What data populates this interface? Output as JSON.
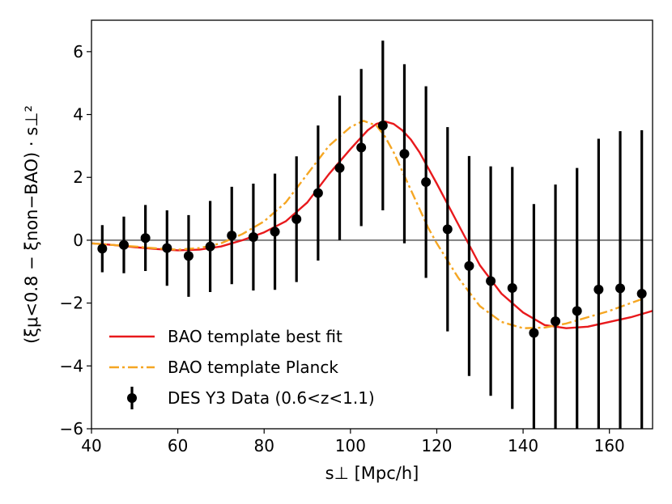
{
  "chart_data": {
    "type": "scatter",
    "title": "",
    "xlabel": "s⊥  [Mpc/h]",
    "ylabel": "(ξμ<0.8 − ξnon−BAO) · s⊥²",
    "xlim": [
      40,
      170
    ],
    "ylim": [
      -6,
      7
    ],
    "xticks": [
      40,
      60,
      80,
      100,
      120,
      140,
      160
    ],
    "yticks": [
      -6,
      -4,
      -2,
      0,
      2,
      4,
      6
    ],
    "xtick_labels": [
      "40",
      "60",
      "80",
      "100",
      "120",
      "140",
      "160"
    ],
    "ytick_labels": [
      "−6",
      "−4",
      "−2",
      "0",
      "2",
      "4",
      "6"
    ],
    "zero_line": 0,
    "legend_position": "lower-left",
    "series": [
      {
        "name": "BAO template best fit",
        "kind": "line",
        "style": "solid",
        "color": "#e8191c",
        "x": [
          40,
          45,
          50,
          55,
          60,
          65,
          70,
          75,
          80,
          85,
          90,
          95,
          100,
          102,
          104,
          106,
          108,
          110,
          112,
          114,
          116,
          118,
          120,
          125,
          130,
          135,
          140,
          145,
          150,
          155,
          160,
          165,
          170
        ],
        "y": [
          -0.1,
          -0.15,
          -0.22,
          -0.28,
          -0.32,
          -0.3,
          -0.2,
          0.0,
          0.25,
          0.6,
          1.2,
          2.1,
          2.9,
          3.2,
          3.5,
          3.7,
          3.78,
          3.7,
          3.5,
          3.2,
          2.8,
          2.3,
          1.8,
          0.5,
          -0.8,
          -1.7,
          -2.3,
          -2.7,
          -2.8,
          -2.75,
          -2.6,
          -2.45,
          -2.25
        ]
      },
      {
        "name": "BAO template Planck",
        "kind": "line",
        "style": "dash-dot",
        "color": "#f5a623",
        "x": [
          40,
          45,
          50,
          55,
          60,
          65,
          70,
          75,
          80,
          85,
          90,
          95,
          100,
          103,
          106,
          108,
          110,
          112,
          114,
          116,
          118,
          120,
          125,
          130,
          135,
          140,
          145,
          150,
          155,
          160,
          165,
          168
        ],
        "y": [
          -0.1,
          -0.15,
          -0.2,
          -0.26,
          -0.3,
          -0.25,
          -0.1,
          0.2,
          0.6,
          1.2,
          2.1,
          3.0,
          3.6,
          3.8,
          3.65,
          3.3,
          2.8,
          2.2,
          1.6,
          1.0,
          0.4,
          -0.1,
          -1.2,
          -2.1,
          -2.6,
          -2.8,
          -2.78,
          -2.65,
          -2.45,
          -2.25,
          -2.0,
          -1.85
        ]
      },
      {
        "name": "DES Y3 Data (0.6<z<1.1)",
        "kind": "errorbar",
        "color": "#000000",
        "x": [
          42.5,
          47.5,
          52.5,
          57.5,
          62.5,
          67.5,
          72.5,
          77.5,
          82.5,
          87.5,
          92.5,
          97.5,
          102.5,
          107.5,
          112.5,
          117.5,
          122.5,
          127.5,
          132.5,
          137.5,
          142.5,
          147.5,
          152.5,
          157.5,
          162.5,
          167.5
        ],
        "y": [
          -0.27,
          -0.15,
          0.07,
          -0.25,
          -0.5,
          -0.2,
          0.15,
          0.1,
          0.27,
          0.67,
          1.5,
          2.3,
          2.95,
          3.65,
          2.75,
          1.85,
          0.35,
          -0.82,
          -1.3,
          -1.52,
          -2.95,
          -2.58,
          -2.25,
          -1.57,
          -1.53,
          -1.7
        ],
        "err": [
          0.75,
          0.9,
          1.05,
          1.2,
          1.3,
          1.45,
          1.55,
          1.7,
          1.85,
          2.0,
          2.15,
          2.3,
          2.5,
          2.7,
          2.85,
          3.05,
          3.25,
          3.5,
          3.65,
          3.85,
          4.1,
          4.35,
          4.55,
          4.8,
          5.0,
          5.2
        ]
      }
    ]
  }
}
